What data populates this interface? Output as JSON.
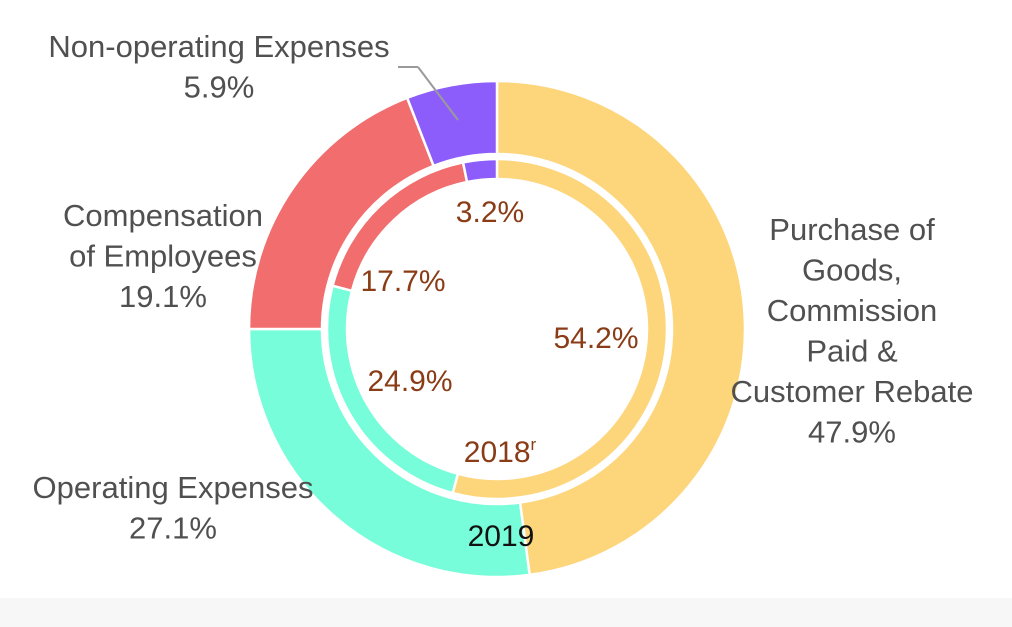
{
  "chart_data": {
    "type": "donut",
    "title": "",
    "rings": [
      {
        "name": "2019",
        "ring": "outer",
        "slices": [
          {
            "label_lines": [
              "Purchase of",
              "Goods,",
              "Commission",
              "Paid &",
              "Customer Rebate"
            ],
            "value_label": "47.9%",
            "value": 47.9,
            "color": "#FDD57A"
          },
          {
            "label_lines": [
              "Operating Expenses"
            ],
            "value_label": "27.1%",
            "value": 27.1,
            "color": "#77FDD9"
          },
          {
            "label_lines": [
              "Compensation",
              "of Employees"
            ],
            "value_label": "19.1%",
            "value": 19.1,
            "color": "#F26D6E"
          },
          {
            "label_lines": [
              "Non-operating Expenses"
            ],
            "value_label": "5.9%",
            "value": 5.9,
            "color": "#8D5DFB"
          }
        ]
      },
      {
        "name": "2018",
        "name_superscript": "r",
        "ring": "inner",
        "slices": [
          {
            "value_label": "54.2%",
            "value": 54.2,
            "color": "#FDD57A"
          },
          {
            "value_label": "24.9%",
            "value": 24.9,
            "color": "#77FDD9"
          },
          {
            "value_label": "17.7%",
            "value": 17.7,
            "color": "#F26D6E"
          },
          {
            "value_label": "3.2%",
            "value": 3.2,
            "color": "#8D5DFB"
          }
        ]
      }
    ]
  }
}
